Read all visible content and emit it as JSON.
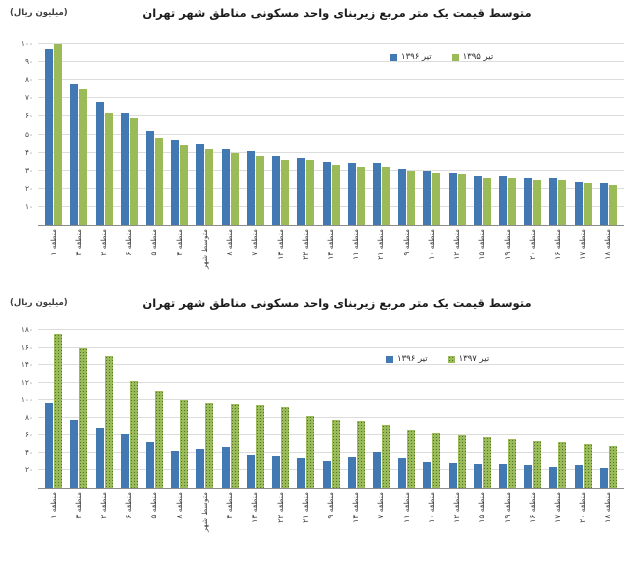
{
  "page": {
    "background": "#ffffff"
  },
  "chart_data": [
    {
      "type": "bar",
      "title": "متوسط قیمت یک متر مربع زیربنای واحد مسکونی مناطق شهر تهران",
      "unit_label": "(میلیون ریال)",
      "xlabel": "",
      "ylabel": "میلیون ریال",
      "grid": "horizontal",
      "legend_position": "top-right-inside",
      "ylim": [
        0,
        100
      ],
      "yticks": [
        {
          "value": 10,
          "label": "۱۰"
        },
        {
          "value": 20,
          "label": "۲۰"
        },
        {
          "value": 30,
          "label": "۳۰"
        },
        {
          "value": 40,
          "label": "۴۰"
        },
        {
          "value": 50,
          "label": "۵۰"
        },
        {
          "value": 60,
          "label": "۶۰"
        },
        {
          "value": 70,
          "label": "۷۰"
        },
        {
          "value": 80,
          "label": "۸۰"
        },
        {
          "value": 90,
          "label": "۹۰"
        },
        {
          "value": 100,
          "label": "۱۰۰"
        }
      ],
      "categories": [
        "منطقه ۱",
        "منطقه ۳",
        "منطقه ۲",
        "منطقه ۶",
        "منطقه ۵",
        "منطقه ۴",
        "متوسط شهر",
        "منطقه ۸",
        "منطقه ۷",
        "منطقه ۱۳",
        "منطقه ۲۲",
        "منطقه ۱۴",
        "منطقه ۱۱",
        "منطقه ۲۱",
        "منطقه ۹",
        "منطقه ۱۰",
        "منطقه ۱۲",
        "منطقه ۱۵",
        "منطقه ۱۹",
        "منطقه ۲۰",
        "منطقه ۱۶",
        "منطقه ۱۷",
        "منطقه ۱۸"
      ],
      "series": [
        {
          "name": "تیر ۱۳۹۶",
          "color": "#4379b3",
          "pattern": "solid",
          "values": [
            97,
            78,
            68,
            62,
            52,
            47,
            45,
            42,
            41,
            38,
            37,
            35,
            34,
            34,
            31,
            30,
            29,
            27,
            27,
            26,
            26,
            24,
            23
          ]
        },
        {
          "name": "تیر ۱۳۹۵",
          "color": "#9bbb59",
          "pattern": "solid",
          "values": [
            100,
            75,
            62,
            59,
            48,
            44,
            42,
            40,
            38,
            36,
            36,
            33,
            32,
            32,
            30,
            29,
            28,
            26,
            26,
            25,
            25,
            23,
            22
          ]
        }
      ]
    },
    {
      "type": "bar",
      "title": "متوسط قیمت یک متر مربع زیربنای واحد مسکونی مناطق شهر تهران",
      "unit_label": "(میلیون ریال)",
      "xlabel": "",
      "ylabel": "میلیون ریال",
      "grid": "horizontal",
      "legend_position": "top-right-inside",
      "ylim": [
        0,
        180
      ],
      "yticks": [
        {
          "value": 20,
          "label": "۲۰"
        },
        {
          "value": 40,
          "label": "۴۰"
        },
        {
          "value": 60,
          "label": "۶۰"
        },
        {
          "value": 80,
          "label": "۸۰"
        },
        {
          "value": 100,
          "label": "۱۰۰"
        },
        {
          "value": 120,
          "label": "۱۲۰"
        },
        {
          "value": 140,
          "label": "۱۴۰"
        },
        {
          "value": 160,
          "label": "۱۶۰"
        },
        {
          "value": 180,
          "label": "۱۸۰"
        }
      ],
      "categories": [
        "منطقه ۱",
        "منطقه ۳",
        "منطقه ۲",
        "منطقه ۶",
        "منطقه ۵",
        "منطقه ۸",
        "متوسط شهر",
        "منطقه ۴",
        "منطقه ۱۳",
        "منطقه ۲۲",
        "منطقه ۲۱",
        "منطقه ۹",
        "منطقه ۱۴",
        "منطقه ۷",
        "منطقه ۱۱",
        "منطقه ۱۰",
        "منطقه ۱۲",
        "منطقه ۱۵",
        "منطقه ۱۹",
        "منطقه ۱۶",
        "منطقه ۱۷",
        "منطقه ۲۰",
        "منطقه ۱۸"
      ],
      "series": [
        {
          "name": "تیر ۱۳۹۶",
          "color": "#4379b3",
          "pattern": "solid",
          "values": [
            97,
            78,
            68,
            62,
            52,
            42,
            45,
            47,
            38,
            37,
            34,
            31,
            35,
            41,
            34,
            30,
            29,
            27,
            27,
            26,
            24,
            26,
            23
          ]
        },
        {
          "name": "تیر ۱۳۹۷",
          "color": "#9bbb59",
          "pattern": "dots",
          "dot_color": "#4e7530",
          "values": [
            175,
            160,
            150,
            122,
            110,
            100,
            97,
            96,
            95,
            92,
            82,
            78,
            76,
            72,
            66,
            63,
            60,
            58,
            56,
            54,
            52,
            50,
            48
          ]
        }
      ]
    }
  ]
}
